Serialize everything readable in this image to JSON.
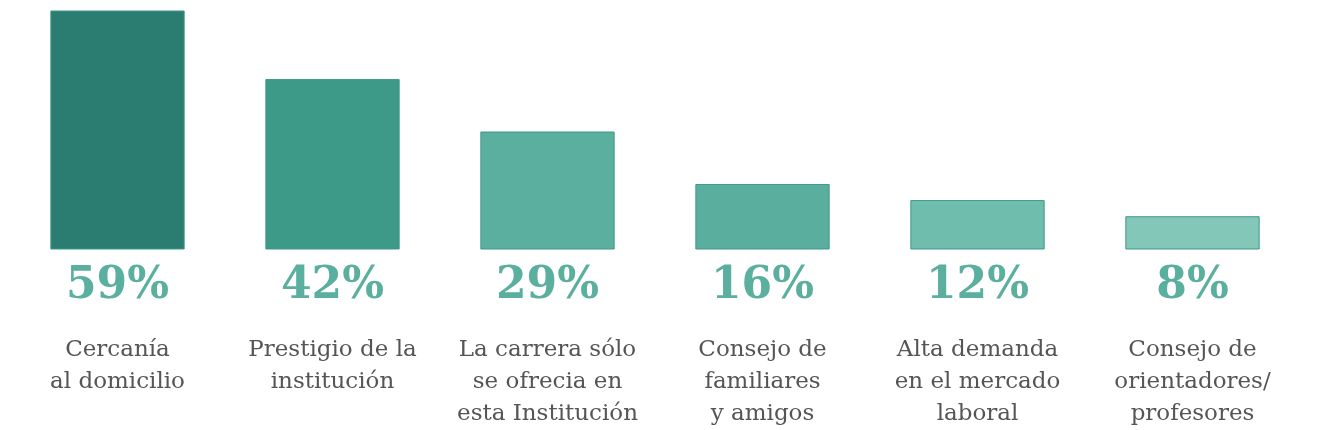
{
  "chart_data": {
    "type": "bar",
    "categories": [
      "Cercanía\nal domicilio",
      "Prestigio de la\ninstitución",
      "La carrera sólo\nse ofrecia en\nesta Institución",
      "Consejo de\nfamiliares\ny amigos",
      "Alta demanda\nen el mercado\nlaboral",
      "Consejo de\norientadores/\nprofesores"
    ],
    "values": [
      59,
      42,
      29,
      16,
      12,
      8
    ],
    "value_labels": [
      "59%",
      "42%",
      "29%",
      "16%",
      "12%",
      "8%"
    ],
    "colors": [
      "#2a7d70",
      "#3d9988",
      "#5aaf9f",
      "#5aae9e",
      "#6fbdad",
      "#83c7b9"
    ],
    "grid": false
  }
}
